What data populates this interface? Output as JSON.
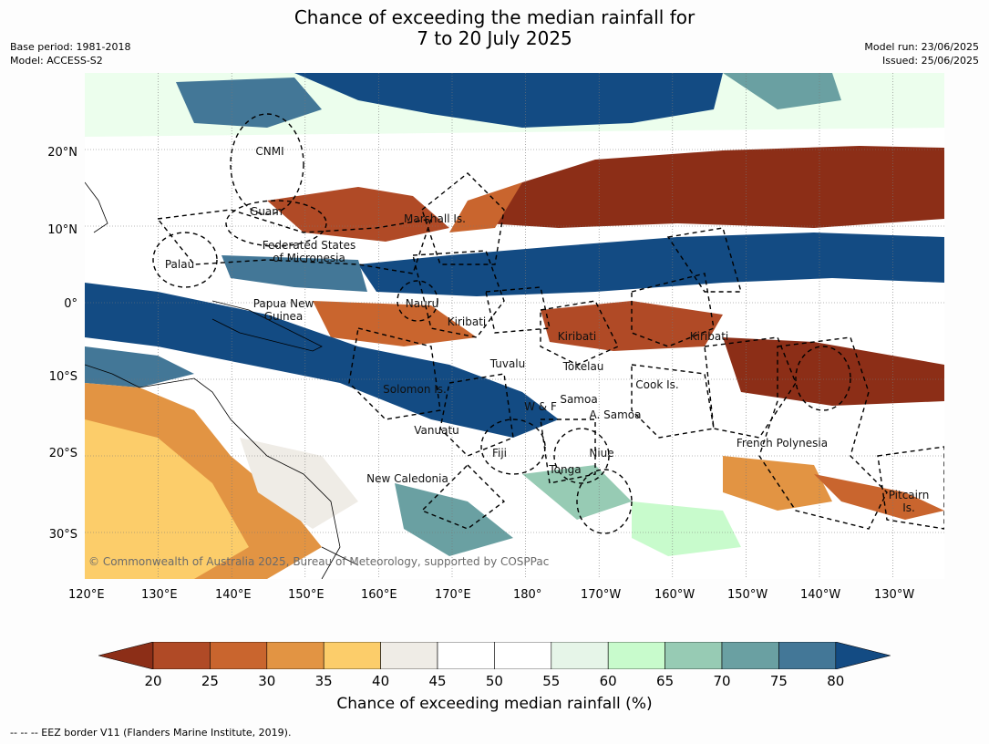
{
  "title": {
    "line1": "Chance of exceeding the median rainfall for",
    "line2": "7 to 20 July 2025"
  },
  "meta_left": {
    "base_period": "Base period: 1981-2018",
    "model": "Model: ACCESS-S2"
  },
  "meta_right": {
    "model_run": "Model run: 23/06/2025",
    "issued": "Issued: 25/06/2025"
  },
  "axes": {
    "lon_labels": [
      "120°E",
      "130°E",
      "140°E",
      "150°E",
      "160°E",
      "170°E",
      "180°",
      "170°W",
      "160°W",
      "150°W",
      "140°W",
      "130°W"
    ],
    "lat_labels": [
      "20°N",
      "10°N",
      "0°",
      "10°S",
      "20°S",
      "30°S"
    ],
    "lon_range": [
      120,
      237
    ],
    "lat_range": [
      -36,
      30
    ]
  },
  "regions": {
    "cnmi": "CNMI",
    "guam": "Guam",
    "marshall": "Marshall Is.",
    "fsm1": "Federated States",
    "fsm2": "of Micronesia",
    "palau": "Palau",
    "png1": "Papua New",
    "png2": "Guinea",
    "nauru": "Nauru",
    "kiribati_w": "Kiribati",
    "kiribati_c": "Kiribati",
    "kiribati_e": "Kiribati",
    "tuvalu": "Tuvalu",
    "tokelau": "Tokelau",
    "cook": "Cook Is.",
    "solomon": "Solomon Is.",
    "wf": "W & F",
    "samoa": "Samoa",
    "asamoa": "A. Samoa",
    "vanuatu": "Vanuatu",
    "fiji": "Fiji",
    "niue": "Niue",
    "tonga": "Tonga",
    "frpoly": "French Polynesia",
    "newcal": "New Caledonia",
    "pitcairn1": "Pitcairn",
    "pitcairn2": "Is."
  },
  "copyright": "© Commonwealth of Australia 2025, Bureau of Meteorology, supported by COSPPac",
  "colorbar": {
    "ticks": [
      "20",
      "25",
      "30",
      "35",
      "40",
      "45",
      "50",
      "55",
      "60",
      "65",
      "70",
      "75",
      "80"
    ],
    "colors": [
      "#8c2e17",
      "#b04a26",
      "#c9652e",
      "#e29443",
      "#fccd6a",
      "#efece6",
      "#ffffff",
      "#ffffff",
      "#e6f5e8",
      "#c8fbcc",
      "#97cbb4",
      "#6aa0a2",
      "#437797",
      "#134b83"
    ],
    "label": "Chance of exceeding median rainfall (%)"
  },
  "footnote": "--  --  -- EEZ border V11 (Flanders Marine Institute, 2019)."
}
